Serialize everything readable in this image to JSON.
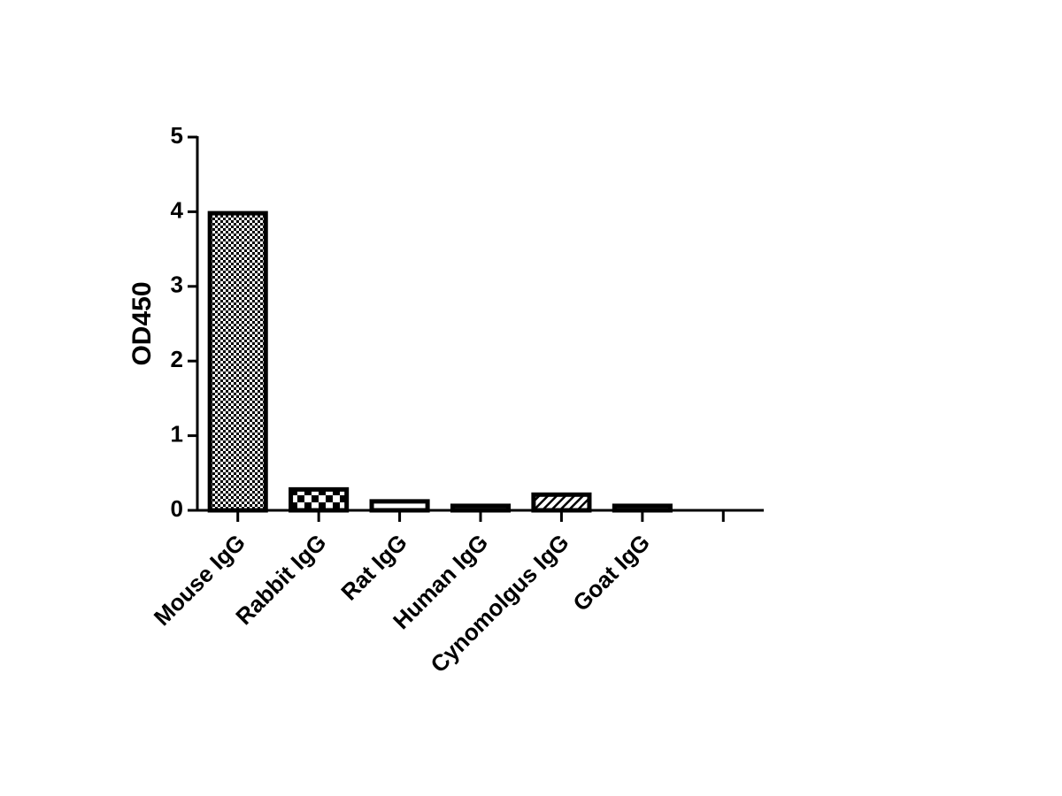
{
  "chart_data": {
    "type": "bar",
    "y_label": "OD450",
    "categories": [
      "Mouse IgG",
      "Rabbit IgG",
      "Rat IgG",
      "Human IgG",
      "Cynomolgus IgG",
      "Goat IgG",
      null
    ],
    "values": [
      3.98,
      0.28,
      0.12,
      0.06,
      0.21,
      0.06,
      null
    ],
    "patterns": [
      "checker-fine",
      "checker-coarse",
      "none",
      "none",
      "hatch",
      "none",
      null
    ],
    "color": "#000000",
    "ylim": [
      0,
      5
    ],
    "yticks": [
      0,
      1,
      2,
      3,
      4,
      5
    ],
    "grid": false
  }
}
